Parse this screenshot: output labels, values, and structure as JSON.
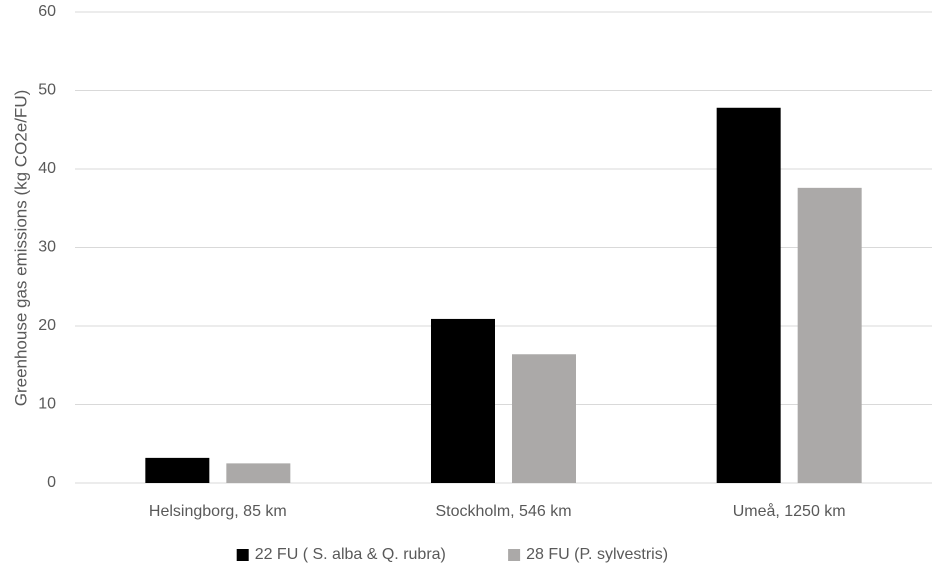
{
  "chart_data": {
    "type": "bar",
    "categories": [
      "Helsingborg, 85 km",
      "Stockholm, 546 km",
      "Umeå, 1250 km"
    ],
    "series": [
      {
        "name": "22 FU ( S. alba & Q. rubra)",
        "values": [
          3.2,
          20.9,
          47.8
        ],
        "color": "#000000"
      },
      {
        "name": "28 FU (P. sylvestris)",
        "values": [
          2.5,
          16.4,
          37.6
        ],
        "color": "#ABA9A8"
      }
    ],
    "ylabel": "Greenhouse gas emissions (kg CO2e/FU)",
    "xlabel": "",
    "ylim": [
      0,
      60
    ],
    "yticks": [
      0,
      10,
      20,
      30,
      40,
      50,
      60
    ],
    "grid": true,
    "gridColor": "#D9D9D9",
    "legend": "bottom"
  }
}
